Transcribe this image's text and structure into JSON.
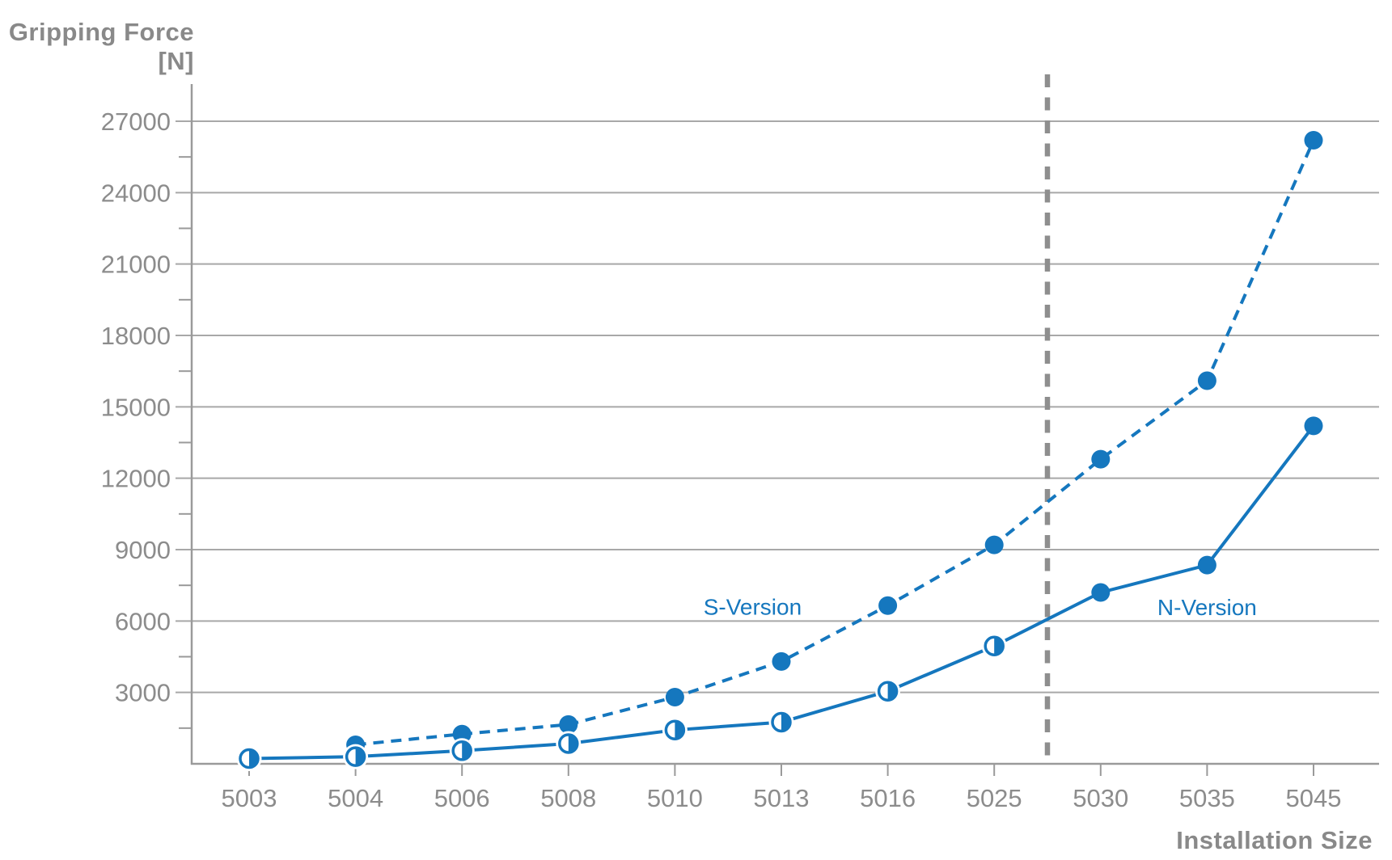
{
  "chart_data": {
    "type": "line",
    "title": "Gripping Force",
    "title_unit": "[N]",
    "xlabel": "Installation Size",
    "ylabel": "Gripping Force [N]",
    "categories": [
      "5003",
      "5004",
      "5006",
      "5008",
      "5010",
      "5013",
      "5016",
      "5025",
      "5030",
      "5035",
      "5045"
    ],
    "series": [
      {
        "name": "S-Version",
        "line_style": "dashed",
        "marker_styles": [
          null,
          "filled",
          "filled",
          "filled",
          "filled",
          "filled",
          "filled",
          "filled",
          "filled",
          "filled",
          "filled"
        ],
        "values": [
          null,
          800,
          1250,
          1650,
          2800,
          4300,
          6650,
          9200,
          12800,
          16100,
          26200
        ]
      },
      {
        "name": "N-Version",
        "line_style": "solid",
        "marker_styles": [
          "half",
          "half",
          "half",
          "half",
          "half",
          "half",
          "half",
          "half",
          "filled",
          "filled",
          "filled"
        ],
        "values": [
          220,
          300,
          550,
          850,
          1420,
          1750,
          3050,
          4950,
          7200,
          8350,
          14200
        ]
      }
    ],
    "y_ticks": [
      3000,
      6000,
      9000,
      12000,
      15000,
      18000,
      21000,
      24000,
      27000
    ],
    "y_minor_ticks": [
      1500,
      4500,
      7500,
      10500,
      13500,
      16500,
      19500,
      22500,
      25500
    ],
    "ylim": [
      0,
      28500
    ],
    "grid": true,
    "legend_position": "inline-annotations",
    "annotations": [
      {
        "text": "S-Version",
        "x_index": 4.73,
        "value": 6600
      },
      {
        "text": "N-Version",
        "x_index": 9.0,
        "value": 6590
      }
    ],
    "separator": {
      "between": [
        "5025",
        "5030"
      ],
      "style": "dashed-vertical"
    }
  },
  "colors": {
    "accent_blue": "#1577BE",
    "grid_gray": "#A8A8A8",
    "axis_gray": "#9A9A9A",
    "tick_label_gray": "#8C8C8C",
    "title_gray": "#898989",
    "separator_gray": "#8E8E8E",
    "background": "#FFFFFF"
  }
}
